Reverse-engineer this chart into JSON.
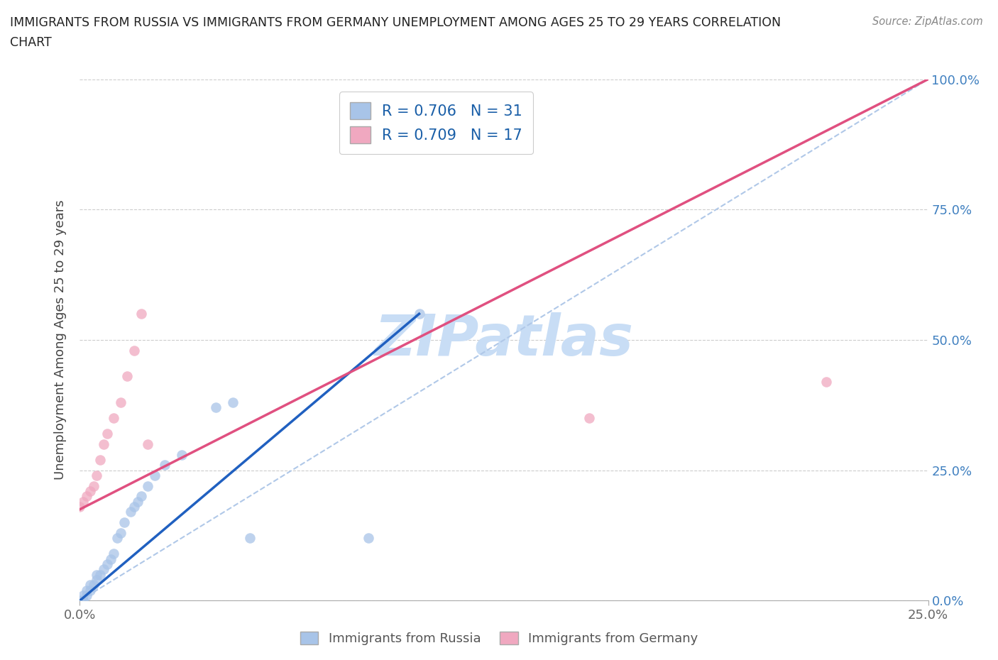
{
  "title_line1": "IMMIGRANTS FROM RUSSIA VS IMMIGRANTS FROM GERMANY UNEMPLOYMENT AMONG AGES 25 TO 29 YEARS CORRELATION",
  "title_line2": "CHART",
  "source": "Source: ZipAtlas.com",
  "ylabel": "Unemployment Among Ages 25 to 29 years",
  "russia_x": [
    0.0,
    0.001,
    0.001,
    0.002,
    0.002,
    0.003,
    0.003,
    0.004,
    0.005,
    0.005,
    0.006,
    0.007,
    0.008,
    0.009,
    0.01,
    0.011,
    0.012,
    0.013,
    0.015,
    0.016,
    0.017,
    0.018,
    0.02,
    0.022,
    0.025,
    0.03,
    0.04,
    0.045,
    0.05,
    0.085,
    0.1
  ],
  "russia_y": [
    0.0,
    0.0,
    0.01,
    0.01,
    0.02,
    0.02,
    0.03,
    0.03,
    0.04,
    0.05,
    0.05,
    0.06,
    0.07,
    0.08,
    0.09,
    0.12,
    0.13,
    0.15,
    0.17,
    0.18,
    0.19,
    0.2,
    0.22,
    0.24,
    0.26,
    0.28,
    0.37,
    0.38,
    0.12,
    0.12,
    0.55
  ],
  "germany_x": [
    0.0,
    0.001,
    0.002,
    0.003,
    0.004,
    0.005,
    0.006,
    0.007,
    0.008,
    0.01,
    0.012,
    0.014,
    0.016,
    0.018,
    0.02,
    0.15,
    0.22
  ],
  "germany_y": [
    0.18,
    0.19,
    0.2,
    0.21,
    0.22,
    0.24,
    0.27,
    0.3,
    0.32,
    0.35,
    0.38,
    0.43,
    0.48,
    0.55,
    0.3,
    0.35,
    0.42
  ],
  "russia_color": "#a8c4e8",
  "germany_color": "#f0a8c0",
  "russia_line_color": "#2060c0",
  "germany_line_color": "#e05080",
  "diag_line_color": "#b0c8e8",
  "r_russia": 0.706,
  "n_russia": 31,
  "r_germany": 0.709,
  "n_germany": 17,
  "xlim_min": 0.0,
  "xlim_max": 0.25,
  "ylim_min": 0.0,
  "ylim_max": 1.0,
  "ytick_positions": [
    0.0,
    0.25,
    0.5,
    0.75,
    1.0
  ],
  "ytick_labels": [
    "0.0%",
    "25.0%",
    "50.0%",
    "75.0%",
    "100.0%"
  ],
  "xtick_positions": [
    0.0,
    0.25
  ],
  "xtick_labels": [
    "0.0%",
    "25.0%"
  ],
  "grid_color": "#cccccc",
  "background_color": "#ffffff",
  "watermark_text": "ZIPatlas",
  "watermark_color": "#c8ddf5",
  "legend_color_russia": "#a8c4e8",
  "legend_color_germany": "#f0a8c0",
  "legend_text_color": "#1a5fa8",
  "right_tick_color": "#4080c0",
  "bottom_legend_label_russia": "Immigrants from Russia",
  "bottom_legend_label_germany": "Immigrants from Germany",
  "russia_line_x0": 0.0,
  "russia_line_y0": 0.0,
  "russia_line_x1": 0.1,
  "russia_line_y1": 0.55,
  "germany_line_x0": 0.0,
  "germany_line_y0": 0.175,
  "germany_line_x1": 0.25,
  "germany_line_y1": 1.0
}
